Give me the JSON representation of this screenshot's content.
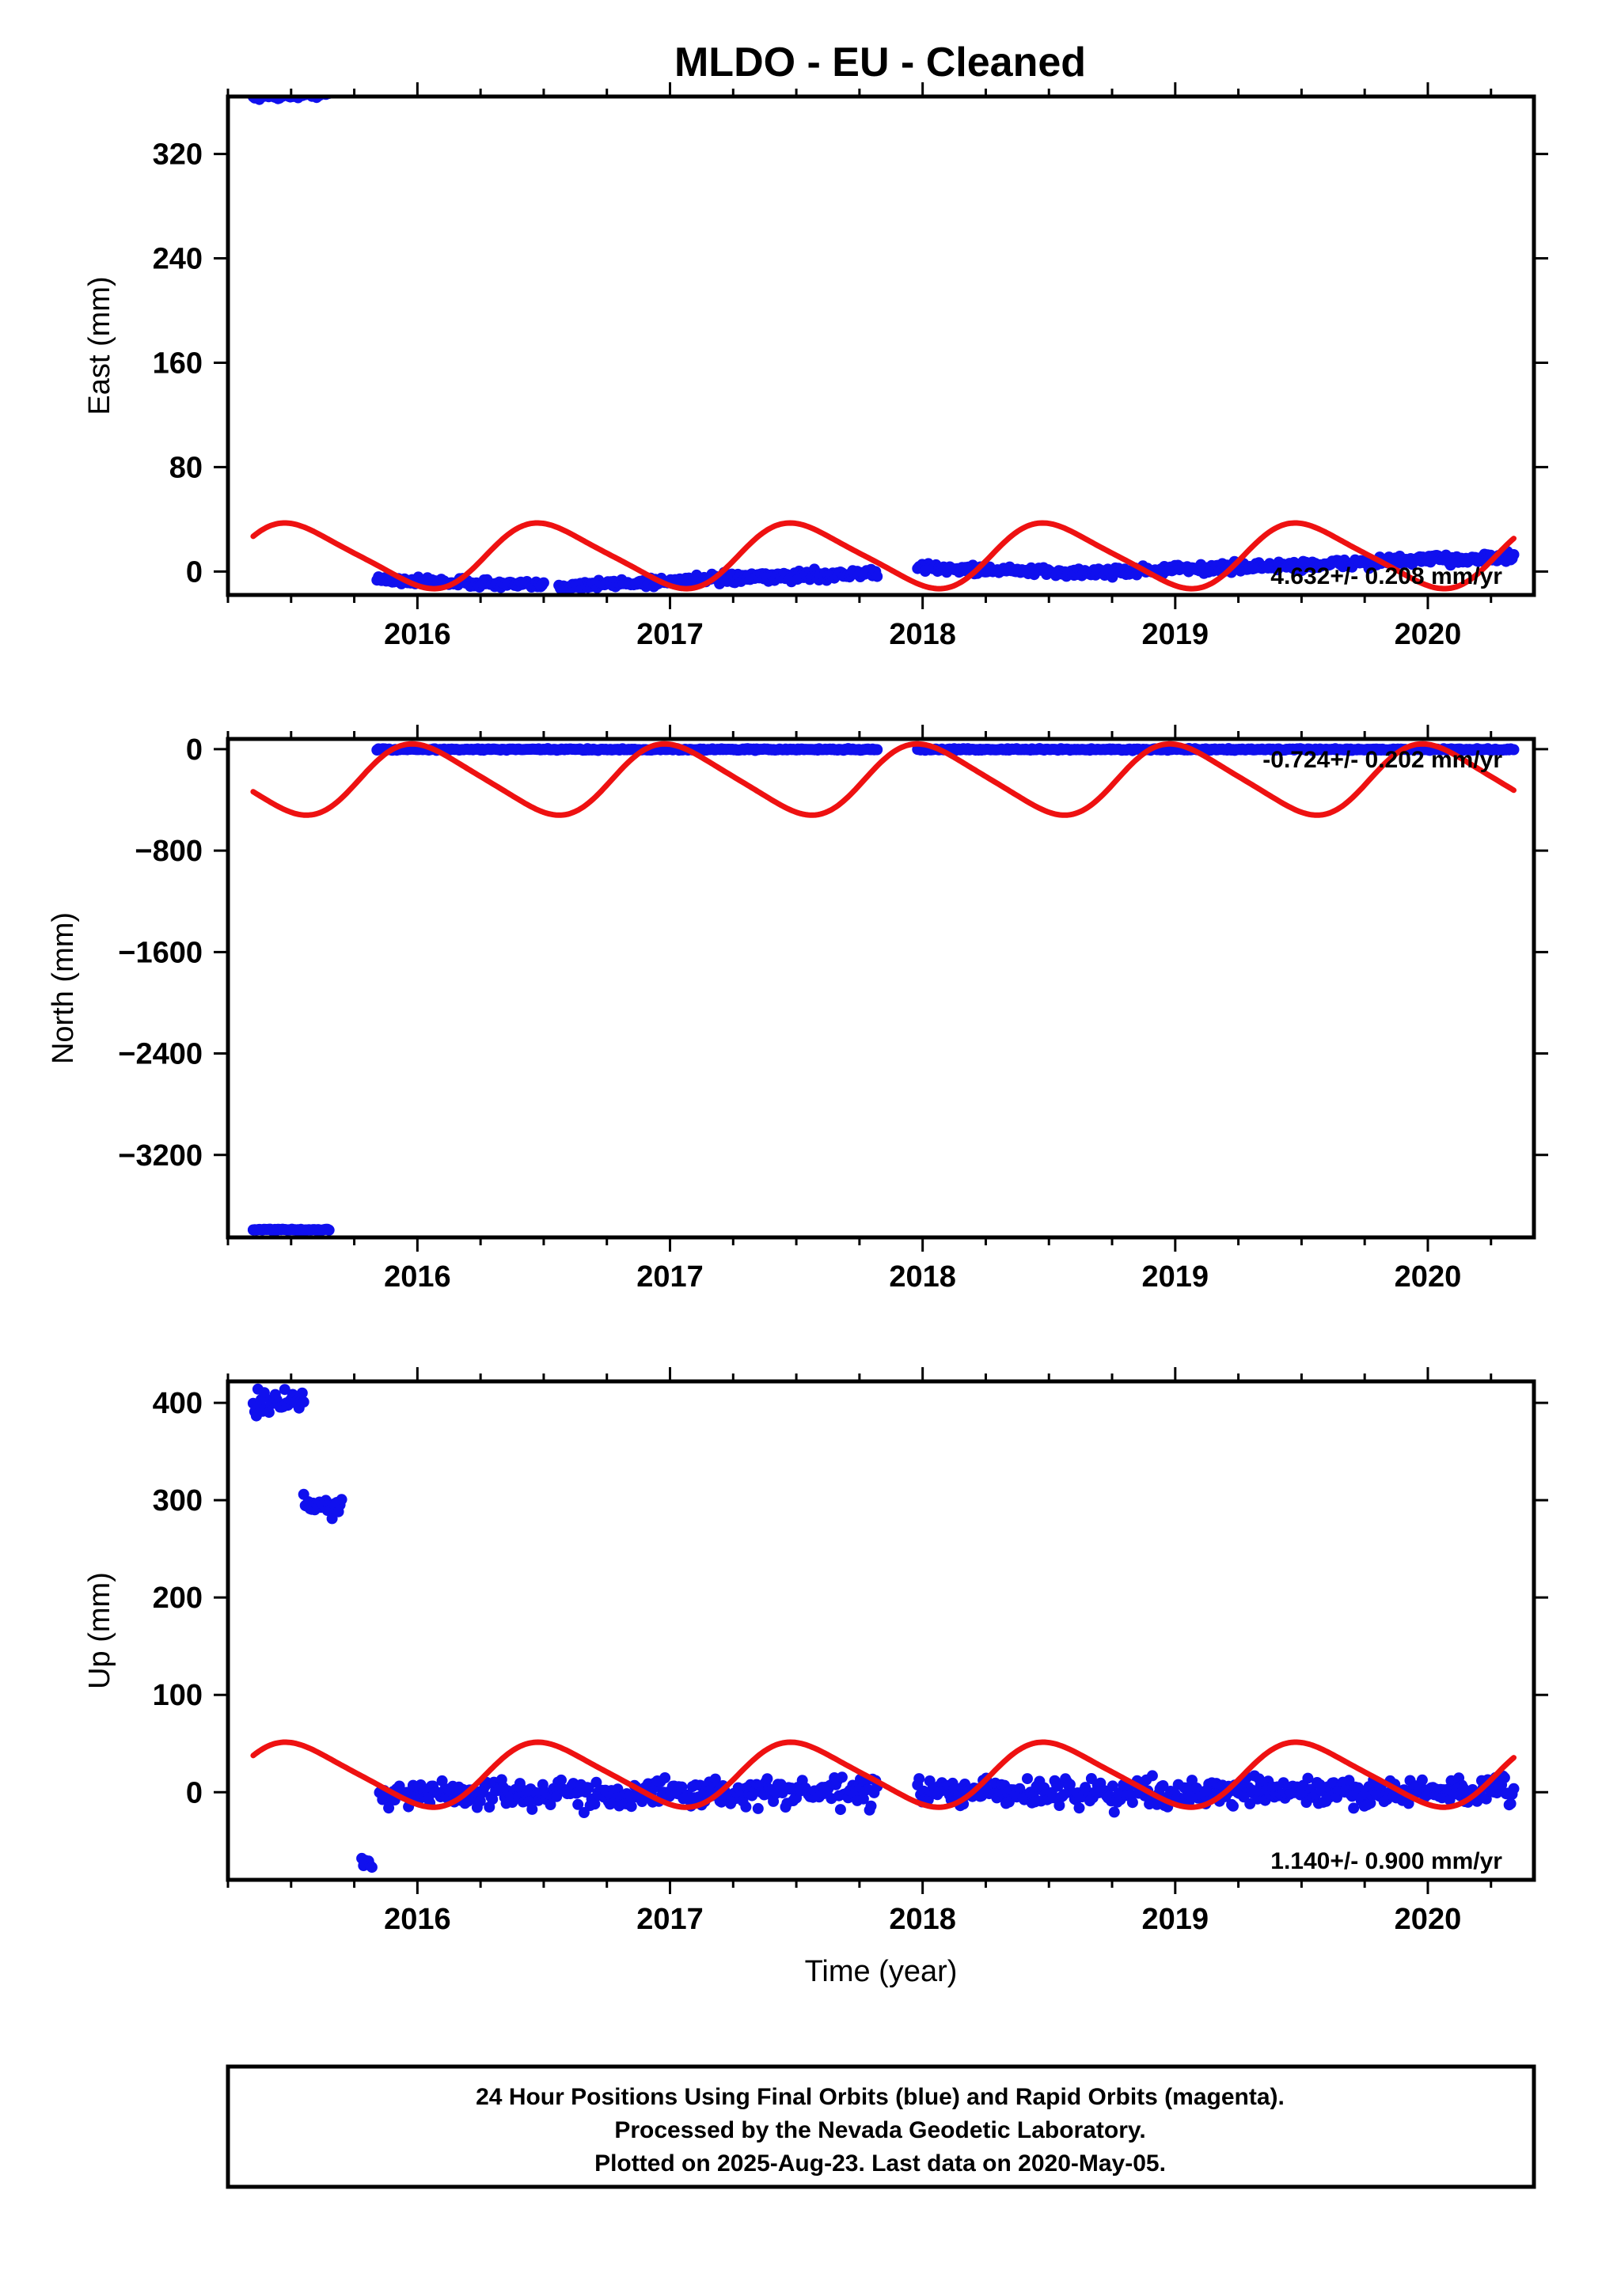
{
  "chart_data": [
    {
      "type": "scatter",
      "title": "MLDO  - EU - Cleaned",
      "ylabel": "East (mm)",
      "xlabel": "",
      "xlim": [
        2015.25,
        2020.42
      ],
      "ylim": [
        -18,
        364
      ],
      "x_ticks": [
        2016,
        2017,
        2018,
        2019,
        2020
      ],
      "y_ticks": [
        0,
        80,
        160,
        240,
        320
      ],
      "rate_label": "4.632+/- 0.208 mm/yr",
      "series": [
        {
          "color": "#1010ee",
          "segments": [
            {
              "x0": 2015.35,
              "x1": 2015.65,
              "y0": 364,
              "y1": 366,
              "noise": 1.2
            },
            {
              "x0": 2015.84,
              "x1": 2016.5,
              "y0": -6,
              "y1": -11,
              "noise": 1.5
            },
            {
              "x0": 2016.56,
              "x1": 2017.82,
              "y0": -11,
              "y1": -1,
              "noise": 1.8
            },
            {
              "x0": 2017.98,
              "x1": 2018.6,
              "y0": 3,
              "y1": -1,
              "noise": 1.5
            },
            {
              "x0": 2018.6,
              "x1": 2019.7,
              "y0": -1,
              "y1": 6,
              "noise": 1.8
            },
            {
              "x0": 2019.7,
              "x1": 2020.34,
              "y0": 7,
              "y1": 11,
              "noise": 1.8
            }
          ]
        },
        {
          "color": "#ee1111",
          "model": {
            "x0": 2015.35,
            "x1": 2020.34,
            "offset": 12,
            "slope": 0,
            "annual": 24,
            "annual_phase": 2015.27,
            "semiannual": 4,
            "trend_start": 0,
            "trend_end": 0
          }
        }
      ]
    },
    {
      "type": "scatter",
      "title": "",
      "ylabel": "North (mm)",
      "xlabel": "",
      "xlim": [
        2015.25,
        2020.42
      ],
      "ylim": [
        -3850,
        80
      ],
      "x_ticks": [
        2016,
        2017,
        2018,
        2019,
        2020
      ],
      "y_ticks": [
        0,
        -800,
        -1600,
        -2400,
        -3200
      ],
      "rate_label": "-0.724+/- 0.202 mm/yr",
      "series": [
        {
          "color": "#1010ee",
          "segments": [
            {
              "x0": 2015.35,
              "x1": 2015.65,
              "y0": -3790,
              "y1": -3790,
              "noise": 3
            },
            {
              "x0": 2015.84,
              "x1": 2017.82,
              "y0": -3,
              "y1": -3,
              "noise": 3
            },
            {
              "x0": 2017.98,
              "x1": 2020.34,
              "y0": -3,
              "y1": -3,
              "noise": 3
            }
          ]
        },
        {
          "color": "#ee1111",
          "model": {
            "x0": 2015.35,
            "x1": 2020.34,
            "offset": -240,
            "slope": 0,
            "annual": 270,
            "annual_phase": 2015.77,
            "semiannual": 40,
            "trend_start": 0,
            "trend_end": 0
          }
        }
      ]
    },
    {
      "type": "scatter",
      "title": "",
      "ylabel": "Up (mm)",
      "xlabel": "Time (year)",
      "xlim": [
        2015.25,
        2020.42
      ],
      "ylim": [
        -90,
        422
      ],
      "x_ticks": [
        2016,
        2017,
        2018,
        2019,
        2020
      ],
      "y_ticks": [
        0,
        100,
        200,
        300,
        400
      ],
      "rate_label": "1.140+/- 0.900 mm/yr",
      "series": [
        {
          "color": "#1010ee",
          "segments": [
            {
              "x0": 2015.35,
              "x1": 2015.55,
              "y0": 400,
              "y1": 400,
              "noise": 6
            },
            {
              "x0": 2015.55,
              "x1": 2015.7,
              "y0": 296,
              "y1": 294,
              "noise": 5
            },
            {
              "x0": 2015.78,
              "x1": 2015.82,
              "y0": -72,
              "y1": -72,
              "noise": 4
            },
            {
              "x0": 2015.85,
              "x1": 2017.82,
              "y0": -2,
              "y1": 0,
              "noise": 7
            },
            {
              "x0": 2017.98,
              "x1": 2020.34,
              "y0": 0,
              "y1": 0,
              "noise": 7
            }
          ]
        },
        {
          "color": "#ee1111",
          "model": {
            "x0": 2015.35,
            "x1": 2020.34,
            "offset": 18,
            "slope": 0,
            "annual": 32,
            "annual_phase": 2015.27,
            "semiannual": 5,
            "trend_start": 0,
            "trend_end": 0
          }
        }
      ]
    }
  ],
  "note": {
    "line1": "24 Hour Positions Using Final Orbits (blue) and Rapid Orbits (magenta).",
    "line2": "Processed by the Nevada Geodetic Laboratory.",
    "line3": "Plotted on 2025-Aug-23. Last data on 2020-May-05."
  }
}
